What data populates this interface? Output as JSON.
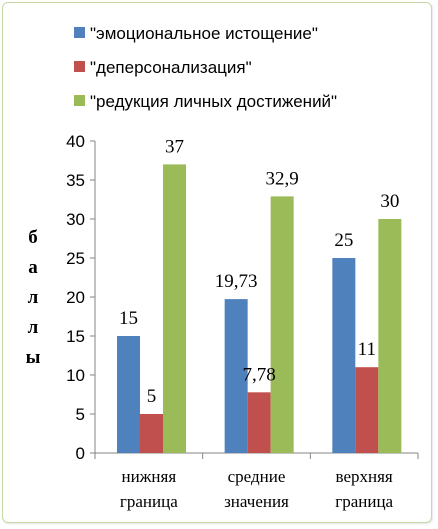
{
  "chart_data": {
    "type": "bar",
    "title": "",
    "xlabel": "",
    "ylabel": "баллы",
    "ylim": [
      0,
      40
    ],
    "yticks": [
      "0",
      "5",
      "10",
      "15",
      "20",
      "25",
      "30",
      "35",
      "40"
    ],
    "grid": false,
    "legend_position": "top",
    "categories": [
      [
        "нижняя",
        "граница"
      ],
      [
        "средние",
        "значения"
      ],
      [
        "верхняя",
        "граница"
      ]
    ],
    "series": [
      {
        "name": "\"эмоциональное истощение\"",
        "color": "#4f81bd",
        "values": [
          15,
          19.73,
          25
        ],
        "labels": [
          "15",
          "19,73",
          "25"
        ]
      },
      {
        "name": "\"деперсонализация\"",
        "color": "#c0504d",
        "values": [
          5,
          7.78,
          11
        ],
        "labels": [
          "5",
          "7,78",
          "11"
        ]
      },
      {
        "name": "\"редукция личных достижений\"",
        "color": "#9bbb59",
        "values": [
          37,
          32.9,
          30
        ],
        "labels": [
          "37",
          "32,9",
          "30"
        ]
      }
    ]
  }
}
